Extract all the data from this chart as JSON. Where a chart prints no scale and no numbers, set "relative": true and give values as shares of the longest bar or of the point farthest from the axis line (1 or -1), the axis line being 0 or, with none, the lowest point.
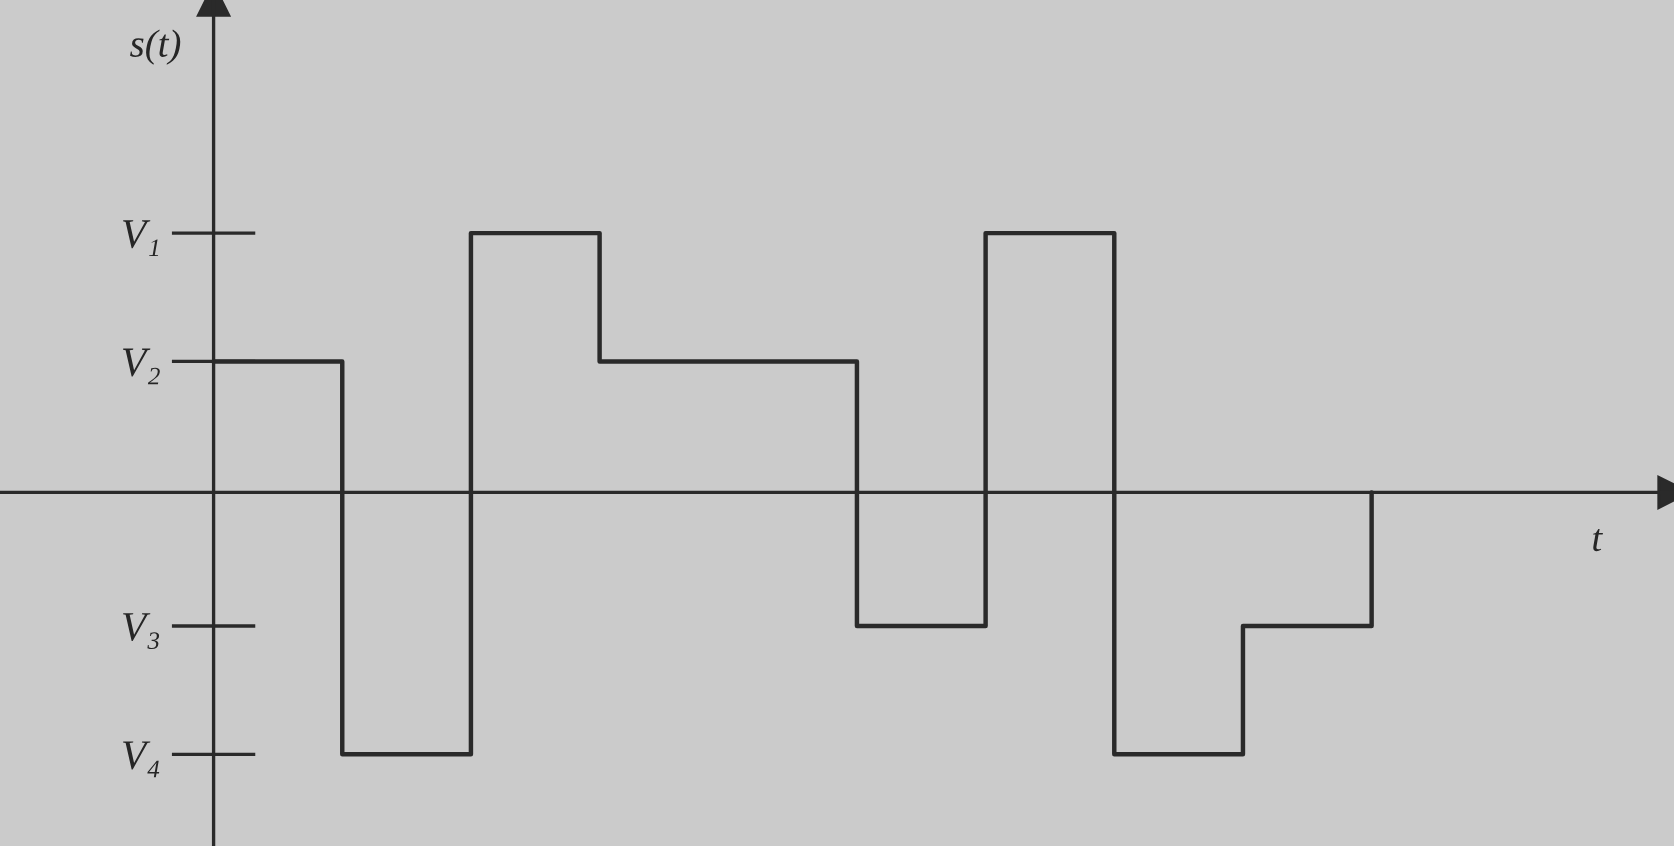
{
  "chart_data": {
    "type": "step",
    "relative": true,
    "xlabel": "t",
    "ylabel": "s(t)",
    "categories": [
      null,
      null,
      null,
      null,
      null,
      null,
      null,
      null,
      null,
      null
    ],
    "values": [
      0.5,
      -1,
      0.99,
      0.5,
      0.5,
      -0.51,
      0.99,
      -1,
      -0.51,
      0
    ],
    "color": "#2a2a2a",
    "annotations": [
      "V₁",
      "V₂",
      "V₃",
      "V₄"
    ]
  }
}
